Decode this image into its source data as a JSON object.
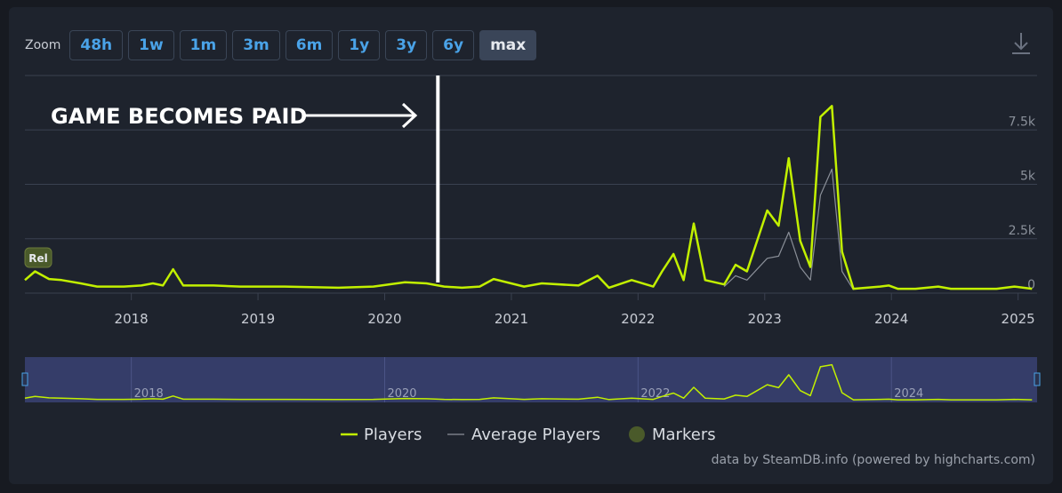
{
  "zoom": {
    "label": "Zoom",
    "buttons": [
      "48h",
      "1w",
      "1m",
      "3m",
      "6m",
      "1y",
      "3y",
      "6y",
      "max"
    ],
    "active": "max"
  },
  "credit": "data by SteamDB.info (powered by highcharts.com)",
  "chart_data": {
    "type": "line",
    "annotation": {
      "text": "GAME BECOMES PAID",
      "x": 2020.42
    },
    "x": [
      2017.16,
      2017.24,
      2017.35,
      2017.45,
      2017.6,
      2017.73,
      2017.94,
      2018.08,
      2018.17,
      2018.25,
      2018.33,
      2018.41,
      2018.65,
      2018.86,
      2019.21,
      2019.63,
      2019.91,
      2020.16,
      2020.33,
      2020.47,
      2020.61,
      2020.75,
      2020.86,
      2021.1,
      2021.24,
      2021.53,
      2021.68,
      2021.77,
      2021.95,
      2022.12,
      2022.19,
      2022.28,
      2022.36,
      2022.44,
      2022.53,
      2022.68,
      2022.77,
      2022.86,
      2023.02,
      2023.11,
      2023.19,
      2023.28,
      2023.36,
      2023.44,
      2023.53,
      2023.61,
      2023.7,
      2023.91,
      2023.98,
      2024.05,
      2024.19,
      2024.37,
      2024.47,
      2024.83,
      2024.97,
      2025.11
    ],
    "series": [
      {
        "name": "Players",
        "color": "#c2f000",
        "values": [
          600,
          1000,
          650,
          600,
          450,
          300,
          300,
          350,
          450,
          350,
          1100,
          350,
          350,
          300,
          300,
          250,
          300,
          500,
          450,
          300,
          250,
          300,
          650,
          300,
          450,
          350,
          800,
          250,
          600,
          300,
          1000,
          1800,
          600,
          3200,
          600,
          400,
          1300,
          1000,
          3800,
          3100,
          6200,
          2400,
          1200,
          8100,
          8600,
          1900,
          200,
          300,
          350,
          200,
          200,
          300,
          200,
          200,
          300,
          200
        ]
      },
      {
        "name": "Average Players",
        "color": "#8a8f98",
        "values": [
          null,
          null,
          null,
          null,
          null,
          null,
          null,
          null,
          null,
          null,
          null,
          null,
          null,
          null,
          null,
          null,
          null,
          null,
          null,
          null,
          null,
          null,
          null,
          null,
          null,
          null,
          null,
          null,
          null,
          null,
          null,
          null,
          null,
          null,
          null,
          300,
          800,
          600,
          1600,
          1700,
          2800,
          1200,
          600,
          4500,
          5700,
          1000,
          150,
          null,
          null,
          null,
          null,
          null,
          null,
          null,
          null,
          null
        ]
      }
    ],
    "markers": {
      "name": "Markers",
      "color": "#4a5a2a",
      "items": [
        {
          "label": "Rel",
          "x": 2017.16
        }
      ]
    },
    "xlim": [
      2017.16,
      2025.15
    ],
    "xticks": [
      2018,
      2019,
      2020,
      2021,
      2022,
      2023,
      2024,
      2025
    ],
    "ylim": [
      0,
      10000
    ],
    "yticks": [
      0,
      {
        "value": 2500,
        "label": "2.5k"
      },
      {
        "value": 5000,
        "label": "5k"
      },
      {
        "value": 7500,
        "label": "7.5k"
      }
    ],
    "grid": true,
    "navigator_ticks": [
      2018,
      2020,
      2022,
      2024
    ]
  }
}
